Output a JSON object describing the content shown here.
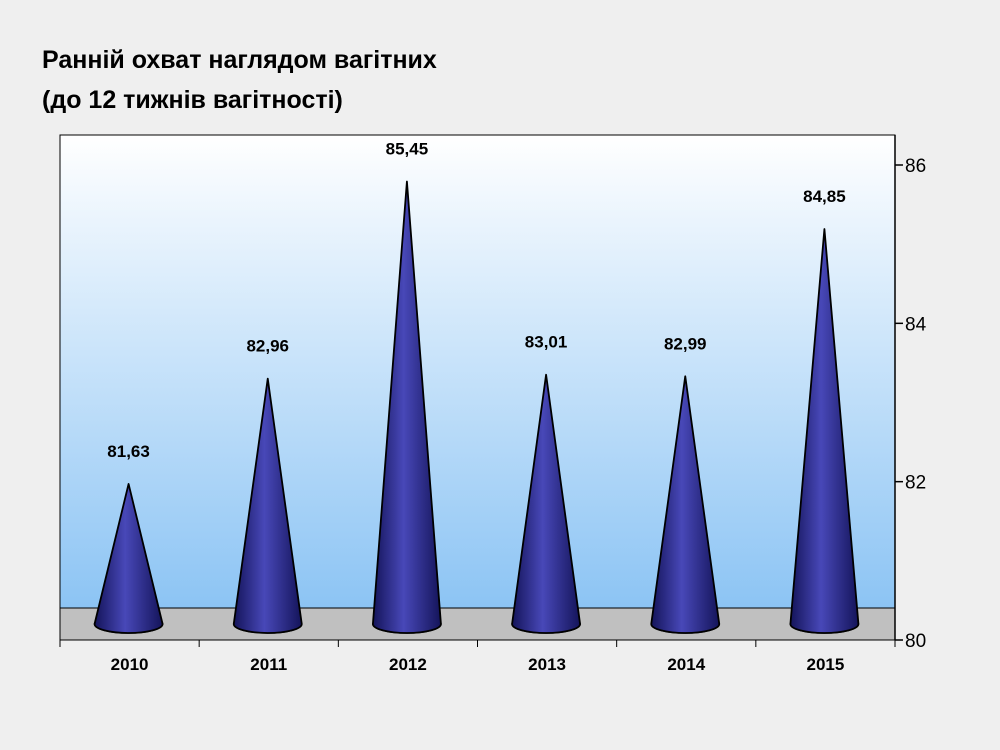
{
  "title_line1": "Ранній охват наглядом вагітних",
  "title_line2": "(до 12 тижнів вагітності)",
  "chart_data": {
    "type": "bar",
    "shape": "cone",
    "title": "Ранній охват наглядом вагітних (до 12 тижнів вагітності)",
    "categories": [
      "2010",
      "2011",
      "2012",
      "2013",
      "2014",
      "2015"
    ],
    "values": [
      81.63,
      82.96,
      85.45,
      83.01,
      82.99,
      84.85
    ],
    "data_labels": [
      "81,63",
      "82,96",
      "85,45",
      "83,01",
      "82,99",
      "84,85"
    ],
    "ylim": [
      80,
      86
    ],
    "yticks": [
      80,
      82,
      84,
      86
    ],
    "ytick_labels": [
      "80",
      "82",
      "84",
      "86"
    ],
    "y_axis_side": "right",
    "xlabel": "",
    "ylabel": "",
    "grid": false,
    "legend": "none",
    "colors": {
      "cone_dark": "#14145a",
      "cone_light": "#4848b8",
      "wall_top": "#ffffff",
      "wall_bottom": "#8cc4f4",
      "floor": "#c0c0c0"
    }
  }
}
